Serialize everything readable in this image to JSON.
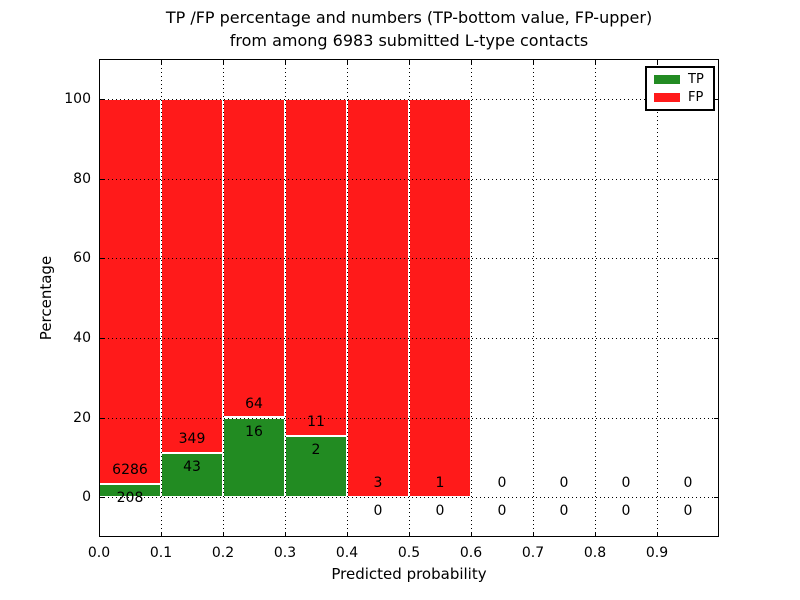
{
  "chart_data": {
    "type": "bar",
    "subtype": "stacked-percentage-histogram",
    "title_line1": "TP /FP percentage and numbers (TP-bottom value, FP-upper)",
    "title_line2": "from among 6983 submitted L-type contacts",
    "xlabel": "Predicted probability",
    "ylabel": "Percentage",
    "xlim": [
      0.0,
      1.0
    ],
    "ylim": [
      -10,
      110
    ],
    "grid": "dotted",
    "legend_position": "upper-right",
    "x_tick_labels": [
      "0.0",
      "0.1",
      "0.2",
      "0.3",
      "0.4",
      "0.5",
      "0.6",
      "0.7",
      "0.8",
      "0.9"
    ],
    "y_ticks": [
      {
        "value": 0,
        "label": "0"
      },
      {
        "value": 20,
        "label": "20"
      },
      {
        "value": 40,
        "label": "40"
      },
      {
        "value": 60,
        "label": "60"
      },
      {
        "value": 80,
        "label": "80"
      },
      {
        "value": 100,
        "label": "100"
      }
    ],
    "legend": [
      {
        "label": "TP",
        "color": "#228b22"
      },
      {
        "label": "FP",
        "color": "#ff1a1a"
      }
    ],
    "colors": {
      "tp": "#228b22",
      "fp": "#ff1a1a"
    },
    "bins": [
      {
        "x_start": 0.0,
        "x_end": 0.1,
        "tp_count": 208,
        "fp_count": 6286
      },
      {
        "x_start": 0.1,
        "x_end": 0.2,
        "tp_count": 43,
        "fp_count": 349
      },
      {
        "x_start": 0.2,
        "x_end": 0.3,
        "tp_count": 16,
        "fp_count": 64
      },
      {
        "x_start": 0.3,
        "x_end": 0.4,
        "tp_count": 2,
        "fp_count": 11
      },
      {
        "x_start": 0.4,
        "x_end": 0.5,
        "tp_count": 0,
        "fp_count": 3
      },
      {
        "x_start": 0.5,
        "x_end": 0.6,
        "tp_count": 0,
        "fp_count": 1
      },
      {
        "x_start": 0.6,
        "x_end": 0.7,
        "tp_count": 0,
        "fp_count": 0
      },
      {
        "x_start": 0.7,
        "x_end": 0.8,
        "tp_count": 0,
        "fp_count": 0
      },
      {
        "x_start": 0.8,
        "x_end": 0.9,
        "tp_count": 0,
        "fp_count": 0
      },
      {
        "x_start": 0.9,
        "x_end": 1.0,
        "tp_count": 0,
        "fp_count": 0
      }
    ],
    "total_contacts": 6983
  }
}
